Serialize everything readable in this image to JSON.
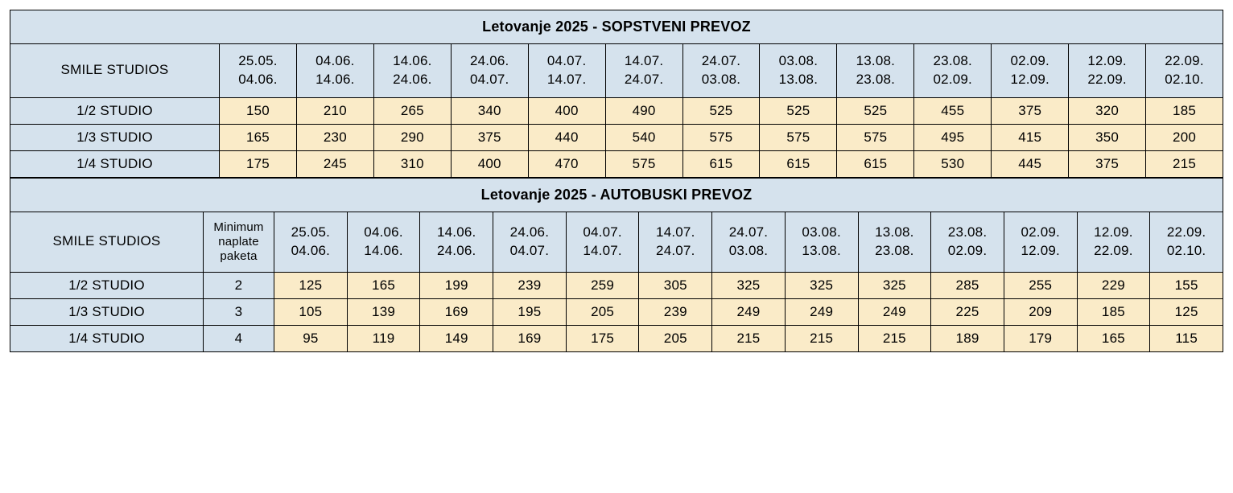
{
  "colors": {
    "header_bg": "#d5e2ed",
    "price_bg": "#faebc8",
    "border": "#000000",
    "text": "#000000"
  },
  "tables": [
    {
      "title": "Letovanje 2025 - SOPSTVENI PREVOZ",
      "row_header_label": "SMILE STUDIOS",
      "has_min_col": false,
      "date_headers": [
        [
          "25.05.",
          "04.06."
        ],
        [
          "04.06.",
          "14.06."
        ],
        [
          "14.06.",
          "24.06."
        ],
        [
          "24.06.",
          "04.07."
        ],
        [
          "04.07.",
          "14.07."
        ],
        [
          "14.07.",
          "24.07."
        ],
        [
          "24.07.",
          "03.08."
        ],
        [
          "03.08.",
          "13.08."
        ],
        [
          "13.08.",
          "23.08."
        ],
        [
          "23.08.",
          "02.09."
        ],
        [
          "02.09.",
          "12.09."
        ],
        [
          "12.09.",
          "22.09."
        ],
        [
          "22.09.",
          "02.10."
        ]
      ],
      "rows": [
        {
          "label": "1/2 STUDIO",
          "prices": [
            "150",
            "210",
            "265",
            "340",
            "400",
            "490",
            "525",
            "525",
            "525",
            "455",
            "375",
            "320",
            "185"
          ]
        },
        {
          "label": "1/3 STUDIO",
          "prices": [
            "165",
            "230",
            "290",
            "375",
            "440",
            "540",
            "575",
            "575",
            "575",
            "495",
            "415",
            "350",
            "200"
          ]
        },
        {
          "label": "1/4 STUDIO",
          "prices": [
            "175",
            "245",
            "310",
            "400",
            "470",
            "575",
            "615",
            "615",
            "615",
            "530",
            "445",
            "375",
            "215"
          ]
        }
      ]
    },
    {
      "title": "Letovanje 2025 - AUTOBUSKI PREVOZ",
      "row_header_label": "SMILE STUDIOS",
      "has_min_col": true,
      "min_col_label": "Minimum naplate paketa",
      "date_headers": [
        [
          "25.05.",
          "04.06."
        ],
        [
          "04.06.",
          "14.06."
        ],
        [
          "14.06.",
          "24.06."
        ],
        [
          "24.06.",
          "04.07."
        ],
        [
          "04.07.",
          "14.07."
        ],
        [
          "14.07.",
          "24.07."
        ],
        [
          "24.07.",
          "03.08."
        ],
        [
          "03.08.",
          "13.08."
        ],
        [
          "13.08.",
          "23.08."
        ],
        [
          "23.08.",
          "02.09."
        ],
        [
          "02.09.",
          "12.09."
        ],
        [
          "12.09.",
          "22.09."
        ],
        [
          "22.09.",
          "02.10."
        ]
      ],
      "rows": [
        {
          "label": "1/2 STUDIO",
          "min": "2",
          "prices": [
            "125",
            "165",
            "199",
            "239",
            "259",
            "305",
            "325",
            "325",
            "325",
            "285",
            "255",
            "229",
            "155"
          ]
        },
        {
          "label": "1/3 STUDIO",
          "min": "3",
          "prices": [
            "105",
            "139",
            "169",
            "195",
            "205",
            "239",
            "249",
            "249",
            "249",
            "225",
            "209",
            "185",
            "125"
          ]
        },
        {
          "label": "1/4 STUDIO",
          "min": "4",
          "prices": [
            "95",
            "119",
            "149",
            "169",
            "175",
            "205",
            "215",
            "215",
            "215",
            "189",
            "179",
            "165",
            "115"
          ]
        }
      ]
    }
  ]
}
